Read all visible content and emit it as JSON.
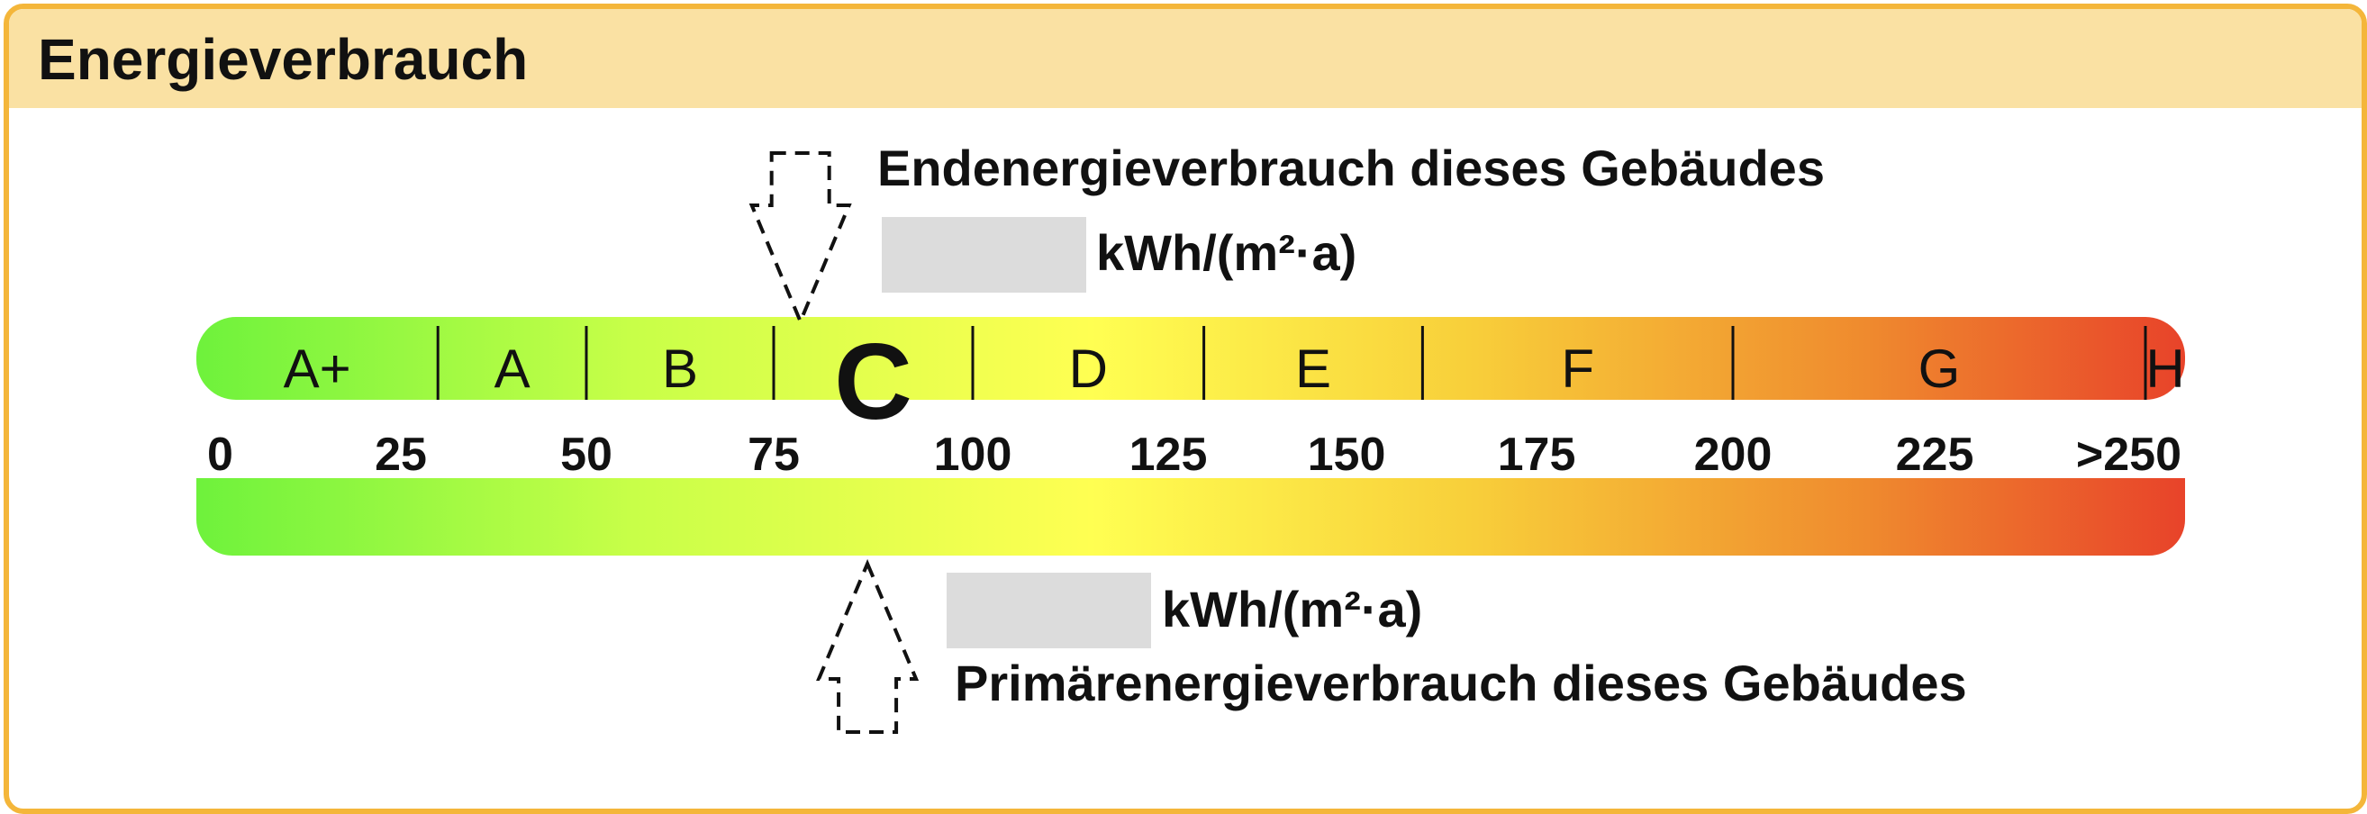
{
  "header": {
    "title": "Energieverbrauch"
  },
  "end_energy": {
    "label": "Endenergieverbrauch dieses Gebäudes",
    "unit": "kWh/(m²·a)",
    "value": ""
  },
  "primary_energy": {
    "label": "Primärenergieverbrauch dieses Gebäudes",
    "unit": "kWh/(m²·a)",
    "value": ""
  },
  "colors": {
    "border": "#f4b63a",
    "header_bg": "#fae1a3",
    "value_box": "#dcdcdc",
    "scale_stops": [
      "#6ef23c",
      "#c8ff48",
      "#ffff52",
      "#f8cf3a",
      "#ef8a2e",
      "#e8432a"
    ]
  },
  "chart_data": {
    "type": "bar",
    "title": "Energieverbrauch",
    "xlim": [
      0,
      260
    ],
    "ticks": [
      {
        "label": "0",
        "value": 0
      },
      {
        "label": "25",
        "value": 25
      },
      {
        "label": "50",
        "value": 50
      },
      {
        "label": "75",
        "value": 75
      },
      {
        "label": "100",
        "value": 100
      },
      {
        "label": "125",
        "value": 125
      },
      {
        "label": "150",
        "value": 150
      },
      {
        "label": "175",
        "value": 175
      },
      {
        "label": "200",
        "value": 200
      },
      {
        "label": "225",
        "value": 225
      },
      {
        "label": ">250",
        "value": 250
      }
    ],
    "classes": [
      {
        "label": "A+",
        "from": 0,
        "to": 30
      },
      {
        "label": "A",
        "from": 30,
        "to": 50
      },
      {
        "label": "B",
        "from": 50,
        "to": 75
      },
      {
        "label": "C",
        "from": 75,
        "to": 100,
        "highlight": true
      },
      {
        "label": "D",
        "from": 100,
        "to": 130
      },
      {
        "label": "E",
        "from": 130,
        "to": 160
      },
      {
        "label": "F",
        "from": 160,
        "to": 200
      },
      {
        "label": "G",
        "from": 200,
        "to": 250
      },
      {
        "label": "H",
        "from": 250,
        "to": 260
      }
    ],
    "end_energy_marker": 77,
    "primary_energy_marker": 87
  }
}
